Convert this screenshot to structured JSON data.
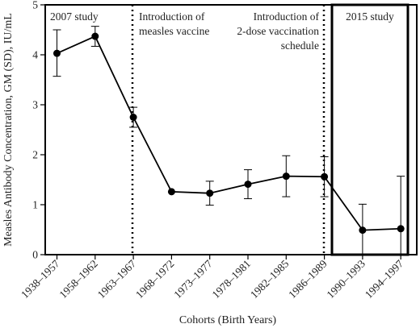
{
  "chart_data": {
    "type": "line",
    "title": "",
    "xlabel": "Cohorts (Birth Years)",
    "ylabel": "Measles Antibody Concentration, GM (SD), IU/mL",
    "ylim": [
      0,
      5
    ],
    "yticks": [
      "0",
      "1",
      "2",
      "3",
      "4",
      "5"
    ],
    "categories": [
      "1938–1957",
      "1958–1962",
      "1963–1967",
      "1968–1972",
      "1973–1977",
      "1978–1981",
      "1982–1985",
      "1986–1989",
      "1990–1993",
      "1994–1997"
    ],
    "series": [
      {
        "values": [
          4.03,
          4.37,
          2.75,
          1.26,
          1.23,
          1.41,
          1.57,
          1.56,
          0.49,
          0.52
        ],
        "error_low": [
          3.57,
          4.17,
          2.55,
          1.26,
          0.99,
          1.12,
          1.16,
          1.16,
          0.0,
          0.0
        ],
        "error_high": [
          4.5,
          4.57,
          2.95,
          1.26,
          1.47,
          1.7,
          1.98,
          1.96,
          1.01,
          1.57
        ]
      }
    ],
    "grid": false,
    "annotations": {
      "study_2007": "2007 study",
      "measles_vaccine": [
        "Introduction of",
        "measles vaccine"
      ],
      "two_dose": [
        "Introduction of",
        "2-dose vaccination",
        "schedule"
      ],
      "study_2015": "2015 study"
    }
  }
}
